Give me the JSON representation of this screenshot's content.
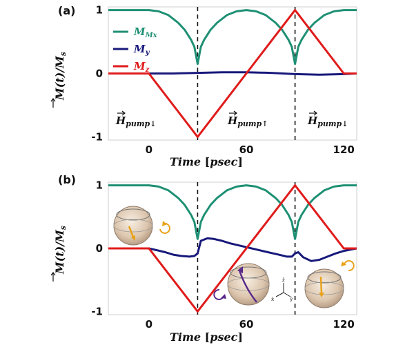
{
  "chart_data": [
    {
      "panel_label": "(a)",
      "type": "line",
      "xlabel": "Time [psec]",
      "ylabel": "M(t)/Ms",
      "xlim": [
        -25,
        128
      ],
      "ylim": [
        -1.05,
        1.05
      ],
      "xticks": [
        "0",
        "60",
        "120"
      ],
      "yticks": [
        "1",
        "0",
        "-1"
      ],
      "vlines": [
        30,
        90
      ],
      "annotations": [
        "H pump↓",
        "H pump↑",
        "H pump↓"
      ],
      "legend": [
        "Mx",
        "My",
        "Mz"
      ],
      "legend_position": "top-left",
      "colors": {
        "Mx": "#1e9074",
        "My": "#17187a",
        "Mz": "#e01b1b"
      },
      "series": [
        {
          "name": "Mx",
          "x": [
            -25,
            0,
            6,
            12,
            18,
            22,
            26,
            28,
            30,
            32,
            34,
            38,
            42,
            48,
            54,
            60,
            66,
            72,
            78,
            82,
            86,
            88,
            90,
            92,
            94,
            98,
            102,
            108,
            114,
            120,
            128
          ],
          "y": [
            1.0,
            1.0,
            0.98,
            0.92,
            0.8,
            0.69,
            0.53,
            0.42,
            0.15,
            0.42,
            0.53,
            0.69,
            0.8,
            0.92,
            0.98,
            1.0,
            0.98,
            0.92,
            0.8,
            0.69,
            0.53,
            0.42,
            0.15,
            0.42,
            0.53,
            0.69,
            0.8,
            0.92,
            0.98,
            1.0,
            1.0
          ]
        },
        {
          "name": "My",
          "x": [
            -25,
            0,
            15,
            30,
            45,
            60,
            75,
            90,
            105,
            120,
            128
          ],
          "y": [
            0.0,
            0.0,
            0.0,
            0.01,
            0.02,
            0.02,
            0.01,
            -0.01,
            -0.02,
            -0.01,
            0.0
          ]
        },
        {
          "name": "Mz",
          "x": [
            -25,
            0,
            30,
            90,
            120,
            128
          ],
          "y": [
            0.0,
            0.0,
            -1.0,
            1.0,
            0.0,
            0.0
          ]
        }
      ]
    },
    {
      "panel_label": "(b)",
      "type": "line",
      "xlabel": "Time [psec]",
      "ylabel": "M(t)/Ms",
      "xlim": [
        -25,
        128
      ],
      "ylim": [
        -1.05,
        1.05
      ],
      "xticks": [
        "0",
        "60",
        "120"
      ],
      "yticks": [
        "1",
        "0",
        "-1"
      ],
      "vlines": [
        30,
        90
      ],
      "axis_labels_inset": [
        "x̂",
        "ŷ",
        "ẑ"
      ],
      "colors": {
        "Mx": "#1e9074",
        "My": "#17187a",
        "Mz": "#e01b1b"
      },
      "series": [
        {
          "name": "Mx",
          "x": [
            -25,
            0,
            6,
            12,
            18,
            22,
            26,
            28,
            30,
            32,
            34,
            38,
            42,
            48,
            54,
            60,
            66,
            72,
            78,
            82,
            86,
            88,
            90,
            92,
            94,
            98,
            102,
            108,
            114,
            120,
            128
          ],
          "y": [
            1.0,
            1.0,
            0.98,
            0.92,
            0.8,
            0.69,
            0.53,
            0.42,
            0.15,
            0.42,
            0.53,
            0.69,
            0.8,
            0.92,
            0.98,
            1.0,
            0.98,
            0.92,
            0.8,
            0.69,
            0.53,
            0.42,
            0.15,
            0.42,
            0.53,
            0.69,
            0.8,
            0.92,
            0.98,
            1.0,
            1.0
          ]
        },
        {
          "name": "My",
          "x": [
            -25,
            0,
            5,
            10,
            15,
            20,
            25,
            28,
            30,
            32,
            36,
            40,
            45,
            50,
            55,
            60,
            65,
            70,
            75,
            80,
            85,
            88,
            90,
            92,
            95,
            100,
            105,
            110,
            115,
            120,
            128
          ],
          "y": [
            0.0,
            0.0,
            -0.03,
            -0.06,
            -0.1,
            -0.12,
            -0.13,
            -0.12,
            -0.08,
            0.12,
            0.16,
            0.15,
            0.12,
            0.08,
            0.05,
            0.02,
            -0.01,
            -0.04,
            -0.07,
            -0.1,
            -0.13,
            -0.13,
            -0.08,
            -0.06,
            -0.14,
            -0.2,
            -0.18,
            -0.13,
            -0.08,
            -0.04,
            0.0
          ]
        },
        {
          "name": "Mz",
          "x": [
            -25,
            0,
            30,
            90,
            120,
            128
          ],
          "y": [
            0.0,
            0.0,
            -1.0,
            1.0,
            0.0,
            0.0
          ]
        }
      ]
    }
  ]
}
